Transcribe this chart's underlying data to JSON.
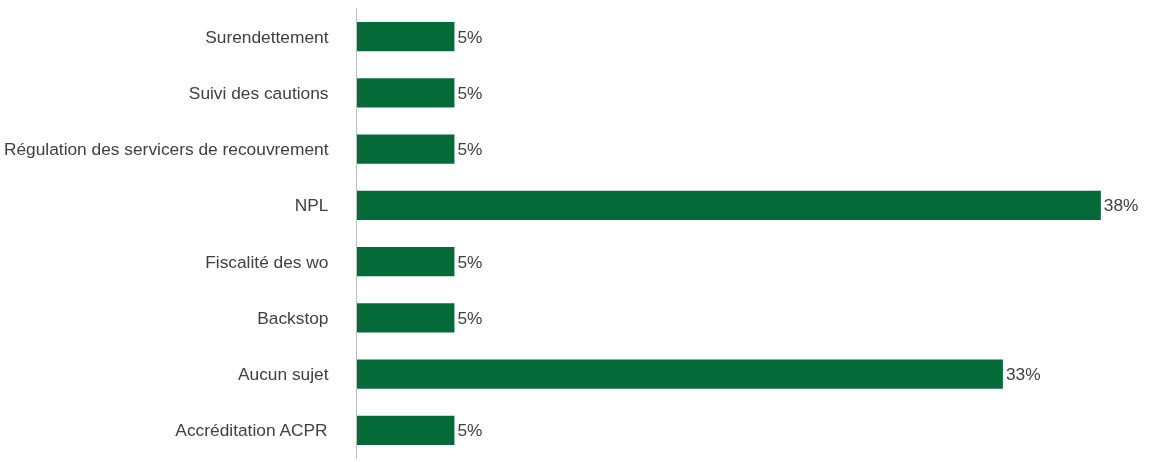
{
  "chart_data": {
    "type": "bar",
    "orientation": "horizontal",
    "categories": [
      "Surendettement",
      "Suivi des cautions",
      "Régulation des servicers de recouvrement",
      "NPL",
      "Fiscalité des wo",
      "Backstop",
      "Aucun sujet",
      "Accréditation ACPR"
    ],
    "values": [
      5,
      5,
      5,
      38,
      5,
      5,
      33,
      5
    ],
    "value_labels": [
      "5%",
      "5%",
      "5%",
      "38%",
      "5%",
      "5%",
      "33%",
      "5%"
    ],
    "color": "#046b38"
  }
}
